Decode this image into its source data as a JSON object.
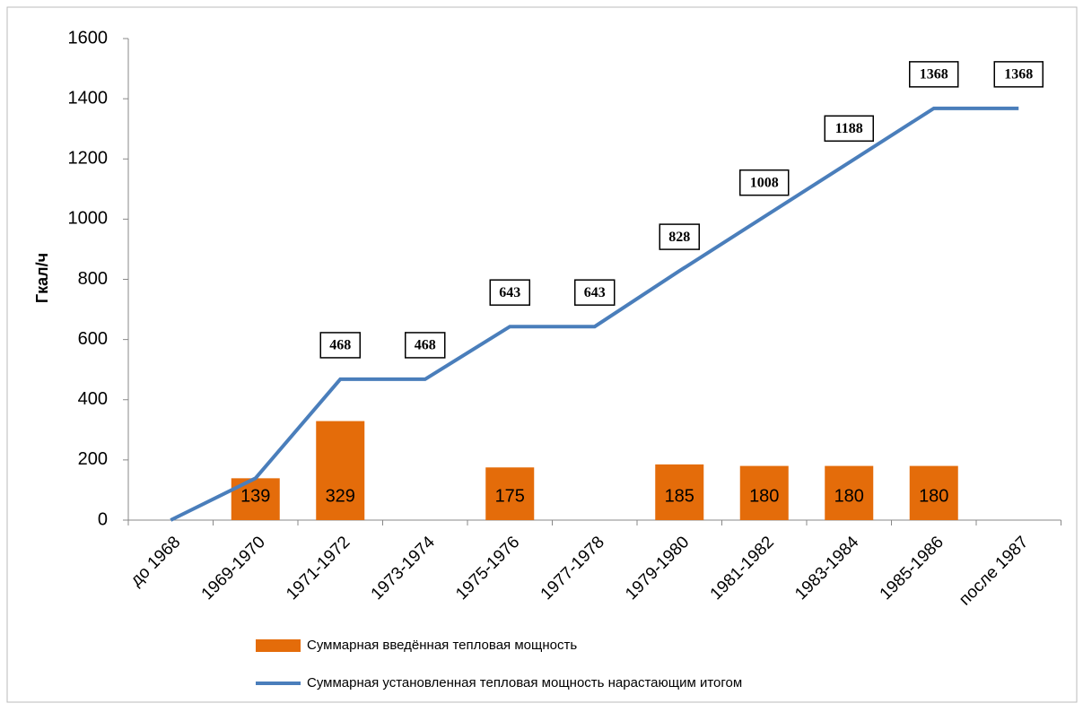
{
  "chart_data": {
    "type": "bar_line",
    "y_label": "Гкал/ч",
    "categories": [
      "до 1968",
      "1969-1970",
      "1971-1972",
      "1973-1974",
      "1975-1976",
      "1977-1978",
      "1979-1980",
      "1981-1982",
      "1983-1984",
      "1985-1986",
      "после 1987"
    ],
    "series": [
      {
        "name": "Суммарная введённая тепловая мощность",
        "type": "bar",
        "color": "#e46c0a",
        "values": [
          null,
          139,
          329,
          null,
          175,
          null,
          185,
          180,
          180,
          180,
          null
        ]
      },
      {
        "name": "Суммарная установленная тепловая мощность нарастающим итогом",
        "type": "line",
        "color": "#4a7ebb",
        "values": [
          0,
          139,
          468,
          468,
          643,
          643,
          828,
          1008,
          1188,
          1368,
          1368
        ],
        "value_labels": [
          null,
          null,
          "468",
          "468",
          "643",
          "643",
          "828",
          "1008",
          "1188",
          "1368",
          "1368"
        ]
      }
    ],
    "ylim": [
      0,
      1600
    ],
    "yticks": [
      0,
      200,
      400,
      600,
      800,
      1000,
      1200,
      1400,
      1600
    ]
  }
}
